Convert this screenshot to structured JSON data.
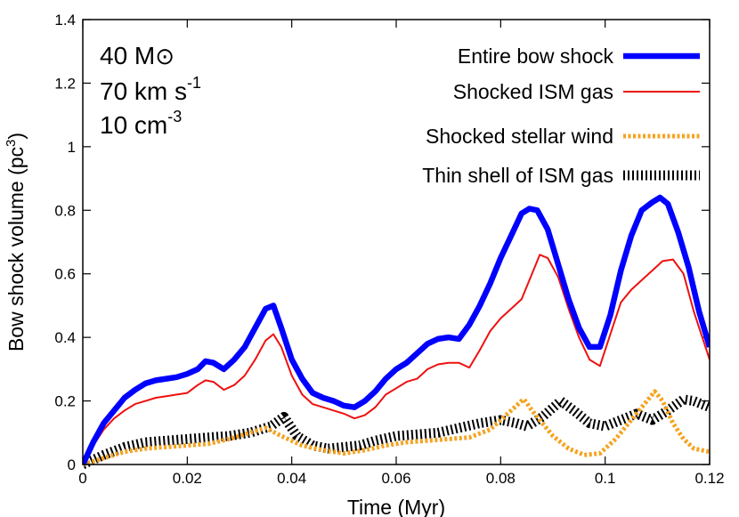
{
  "chart_data": {
    "type": "line",
    "xlabel": "Time (Myr)",
    "ylabel": {
      "main": "Bow shock volume (pc",
      "sup": "3",
      "tail": ")"
    },
    "xlim": [
      0,
      0.12
    ],
    "ylim": [
      0,
      1.4
    ],
    "xticks": [
      {
        "v": 0,
        "label": "0"
      },
      {
        "v": 0.02,
        "label": "0.02"
      },
      {
        "v": 0.04,
        "label": "0.04"
      },
      {
        "v": 0.06,
        "label": "0.06"
      },
      {
        "v": 0.08,
        "label": "0.08"
      },
      {
        "v": 0.1,
        "label": "0.1"
      },
      {
        "v": 0.12,
        "label": "0.12"
      }
    ],
    "yticks": [
      {
        "v": 0,
        "label": "0"
      },
      {
        "v": 0.2,
        "label": "0.2"
      },
      {
        "v": 0.4,
        "label": "0.4"
      },
      {
        "v": 0.6,
        "label": "0.6"
      },
      {
        "v": 0.8,
        "label": "0.8"
      },
      {
        "v": 1.0,
        "label": "1"
      },
      {
        "v": 1.2,
        "label": "1.2"
      },
      {
        "v": 1.4,
        "label": "1.4"
      }
    ],
    "annotations": {
      "mass": "40 M",
      "mass_symbol": "⊙",
      "velocity": "70 km s",
      "velocity_sup": "-1",
      "density": "10 cm",
      "density_sup": "-3"
    },
    "legend_position": "top-right",
    "series": [
      {
        "name": "Entire bow shock",
        "color": "#0000ff",
        "style": "thick-solid",
        "x": [
          0,
          0.002,
          0.004,
          0.006,
          0.008,
          0.01,
          0.012,
          0.014,
          0.016,
          0.018,
          0.02,
          0.022,
          0.0235,
          0.025,
          0.027,
          0.029,
          0.031,
          0.033,
          0.035,
          0.0365,
          0.038,
          0.04,
          0.042,
          0.044,
          0.046,
          0.048,
          0.05,
          0.052,
          0.054,
          0.056,
          0.058,
          0.06,
          0.062,
          0.064,
          0.066,
          0.068,
          0.07,
          0.072,
          0.074,
          0.076,
          0.078,
          0.08,
          0.082,
          0.084,
          0.0855,
          0.087,
          0.089,
          0.091,
          0.093,
          0.095,
          0.097,
          0.099,
          0.101,
          0.103,
          0.105,
          0.107,
          0.109,
          0.1105,
          0.112,
          0.114,
          0.116,
          0.118,
          0.12
        ],
        "y": [
          0.0,
          0.07,
          0.13,
          0.17,
          0.21,
          0.235,
          0.255,
          0.265,
          0.27,
          0.275,
          0.285,
          0.3,
          0.325,
          0.32,
          0.3,
          0.33,
          0.37,
          0.43,
          0.49,
          0.5,
          0.43,
          0.33,
          0.27,
          0.225,
          0.21,
          0.2,
          0.185,
          0.18,
          0.2,
          0.23,
          0.27,
          0.3,
          0.32,
          0.35,
          0.38,
          0.395,
          0.4,
          0.395,
          0.44,
          0.5,
          0.57,
          0.65,
          0.72,
          0.79,
          0.805,
          0.8,
          0.74,
          0.63,
          0.52,
          0.43,
          0.37,
          0.37,
          0.47,
          0.61,
          0.72,
          0.8,
          0.825,
          0.84,
          0.82,
          0.73,
          0.62,
          0.48,
          0.37
        ]
      },
      {
        "name": "Shocked ISM gas",
        "color": "#ee1111",
        "style": "thin-solid",
        "x": [
          0,
          0.002,
          0.004,
          0.006,
          0.008,
          0.01,
          0.012,
          0.014,
          0.016,
          0.018,
          0.02,
          0.022,
          0.0235,
          0.025,
          0.027,
          0.029,
          0.031,
          0.033,
          0.035,
          0.0365,
          0.038,
          0.04,
          0.042,
          0.044,
          0.046,
          0.048,
          0.05,
          0.052,
          0.054,
          0.056,
          0.058,
          0.06,
          0.062,
          0.064,
          0.066,
          0.068,
          0.07,
          0.072,
          0.074,
          0.076,
          0.078,
          0.08,
          0.082,
          0.084,
          0.086,
          0.0875,
          0.089,
          0.091,
          0.093,
          0.095,
          0.097,
          0.099,
          0.101,
          0.103,
          0.105,
          0.107,
          0.109,
          0.111,
          0.113,
          0.115,
          0.117,
          0.12
        ],
        "y": [
          0.0,
          0.06,
          0.11,
          0.145,
          0.17,
          0.19,
          0.2,
          0.21,
          0.215,
          0.22,
          0.225,
          0.25,
          0.265,
          0.26,
          0.235,
          0.25,
          0.28,
          0.33,
          0.39,
          0.41,
          0.37,
          0.28,
          0.22,
          0.19,
          0.18,
          0.17,
          0.16,
          0.145,
          0.155,
          0.18,
          0.22,
          0.24,
          0.26,
          0.27,
          0.3,
          0.315,
          0.32,
          0.32,
          0.305,
          0.36,
          0.42,
          0.46,
          0.49,
          0.52,
          0.6,
          0.66,
          0.65,
          0.59,
          0.49,
          0.4,
          0.33,
          0.31,
          0.41,
          0.51,
          0.55,
          0.58,
          0.61,
          0.64,
          0.645,
          0.6,
          0.48,
          0.33
        ]
      },
      {
        "name": "Shocked stellar wind",
        "color": "#f4a321",
        "style": "dotted",
        "x": [
          0,
          0.004,
          0.008,
          0.012,
          0.016,
          0.02,
          0.024,
          0.028,
          0.032,
          0.035,
          0.038,
          0.042,
          0.046,
          0.05,
          0.054,
          0.058,
          0.062,
          0.066,
          0.07,
          0.074,
          0.078,
          0.082,
          0.084,
          0.0845,
          0.086,
          0.088,
          0.09,
          0.093,
          0.096,
          0.099,
          0.102,
          0.105,
          0.108,
          0.1095,
          0.111,
          0.113,
          0.115,
          0.117,
          0.12
        ],
        "y": [
          0.0,
          0.02,
          0.04,
          0.05,
          0.055,
          0.06,
          0.065,
          0.08,
          0.1,
          0.115,
          0.09,
          0.06,
          0.045,
          0.035,
          0.045,
          0.06,
          0.07,
          0.075,
          0.08,
          0.085,
          0.11,
          0.17,
          0.2,
          0.205,
          0.17,
          0.13,
          0.09,
          0.05,
          0.03,
          0.035,
          0.08,
          0.14,
          0.2,
          0.23,
          0.2,
          0.13,
          0.08,
          0.05,
          0.04
        ]
      },
      {
        "name": "Thin shell of ISM gas",
        "color": "#000000",
        "style": "hatched",
        "x": [
          0,
          0.004,
          0.008,
          0.012,
          0.016,
          0.02,
          0.024,
          0.028,
          0.032,
          0.036,
          0.0385,
          0.041,
          0.044,
          0.047,
          0.05,
          0.053,
          0.056,
          0.06,
          0.064,
          0.068,
          0.072,
          0.076,
          0.08,
          0.083,
          0.085,
          0.088,
          0.0915,
          0.094,
          0.097,
          0.1,
          0.103,
          0.106,
          0.109,
          0.112,
          0.115,
          0.117,
          0.12
        ],
        "y": [
          0.0,
          0.03,
          0.055,
          0.07,
          0.075,
          0.08,
          0.085,
          0.09,
          0.1,
          0.12,
          0.15,
          0.09,
          0.06,
          0.05,
          0.055,
          0.06,
          0.075,
          0.09,
          0.095,
          0.1,
          0.115,
          0.13,
          0.14,
          0.13,
          0.12,
          0.15,
          0.2,
          0.17,
          0.13,
          0.12,
          0.14,
          0.16,
          0.14,
          0.17,
          0.205,
          0.2,
          0.18
        ]
      }
    ]
  }
}
